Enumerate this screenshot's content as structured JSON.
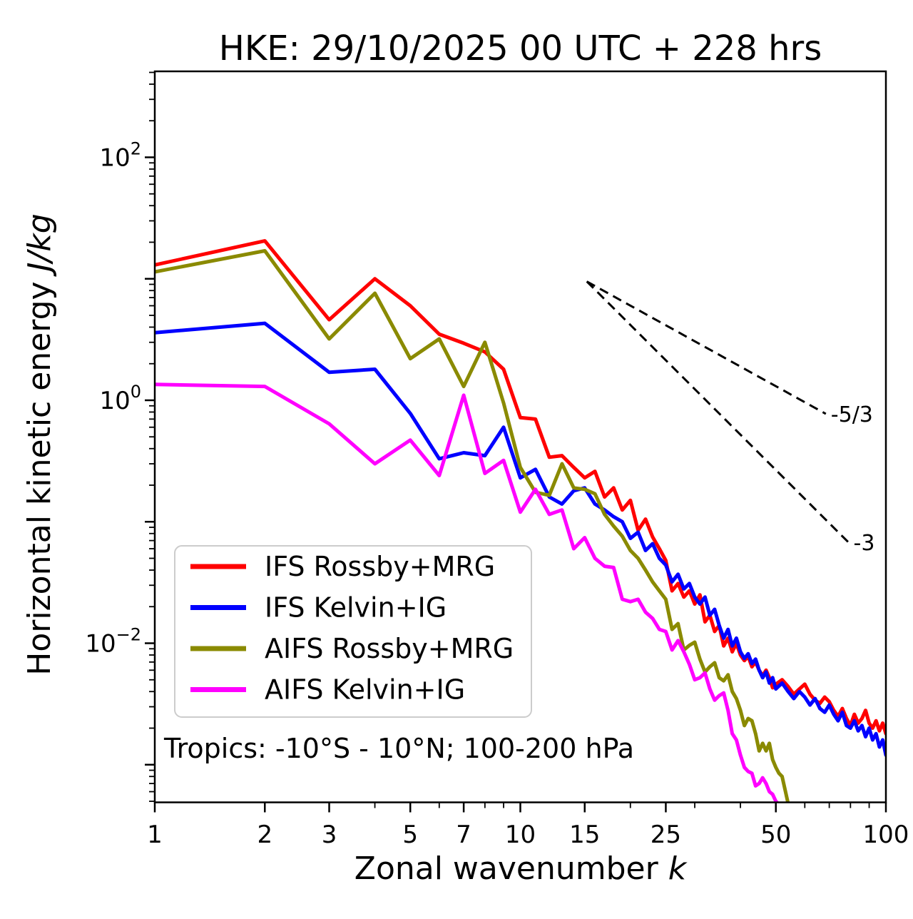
{
  "chart_data": {
    "type": "line",
    "title": "HKE: 29/10/2025 00 UTC + 228 hrs",
    "xlabel_text": "Zonal wavenumber ",
    "xlabel_var": "k",
    "ylabel_text": "Horizontal kinetic energy ",
    "ylabel_var": "J/kg",
    "annotation": "Tropics: -10°S - 10°N; 100-200 hPa",
    "xscale": "log",
    "yscale": "log",
    "grid": false,
    "legend_position": "lower left",
    "xlim": [
      1,
      100
    ],
    "ylim": [
      0.00049,
      510
    ],
    "x_ticks": [
      {
        "v": 1,
        "label": "1"
      },
      {
        "v": 2,
        "label": "2"
      },
      {
        "v": 3,
        "label": "3"
      },
      {
        "v": 5,
        "label": "5"
      },
      {
        "v": 7,
        "label": "7"
      },
      {
        "v": 10,
        "label": "10"
      },
      {
        "v": 15,
        "label": "15"
      },
      {
        "v": 25,
        "label": "25"
      },
      {
        "v": 50,
        "label": "50"
      },
      {
        "v": 100,
        "label": "100"
      }
    ],
    "x_minor_ticks": [
      4,
      6,
      8,
      9,
      20,
      30,
      40,
      60,
      70,
      80,
      90
    ],
    "y_major_ticks": [
      100,
      10,
      1,
      0.1,
      0.01,
      0.001
    ],
    "y_ticks": [
      {
        "v": 100,
        "base": "10",
        "exp": "2"
      },
      {
        "v": 1,
        "base": "10",
        "exp": "0"
      },
      {
        "v": 0.01,
        "base": "10",
        "exp": "−2"
      }
    ],
    "ref_lines": [
      {
        "label": "-5/3",
        "slope": -1.6667,
        "k0": 15.2,
        "v0": 9.5,
        "k1": 68.5
      },
      {
        "label": "-3",
        "slope": -3,
        "k0": 15.2,
        "v0": 9.5,
        "k1": 79
      }
    ],
    "series": [
      {
        "name": "IFS Rossby+MRG",
        "color": "#ff0000",
        "points": [
          [
            1,
            13.0
          ],
          [
            2,
            20.5
          ],
          [
            3,
            4.6
          ],
          [
            4,
            10.0
          ],
          [
            5,
            6.0
          ],
          [
            6,
            3.5
          ],
          [
            7,
            2.95
          ],
          [
            8,
            2.5
          ],
          [
            9,
            1.8
          ],
          [
            10,
            0.72
          ],
          [
            11,
            0.7
          ],
          [
            12,
            0.34
          ],
          [
            13,
            0.35
          ],
          [
            14,
            0.28
          ],
          [
            15,
            0.23
          ],
          [
            16,
            0.26
          ],
          [
            17,
            0.16
          ],
          [
            18,
            0.19
          ],
          [
            19,
            0.125
          ],
          [
            20,
            0.15
          ],
          [
            21,
            0.085
          ],
          [
            22,
            0.105
          ],
          [
            23,
            0.075
          ],
          [
            24,
            0.06
          ],
          [
            25,
            0.048
          ],
          [
            26,
            0.027
          ],
          [
            27,
            0.031
          ],
          [
            28,
            0.024
          ],
          [
            29,
            0.027
          ],
          [
            30,
            0.021
          ],
          [
            31,
            0.025
          ],
          [
            32,
            0.015
          ],
          [
            33,
            0.017
          ],
          [
            34,
            0.0125
          ],
          [
            35,
            0.014
          ],
          [
            36,
            0.0095
          ],
          [
            37,
            0.011
          ],
          [
            38,
            0.0085
          ],
          [
            39,
            0.01
          ],
          [
            40,
            0.008
          ],
          [
            41,
            0.0072
          ],
          [
            42,
            0.0078
          ],
          [
            43,
            0.0064
          ],
          [
            44,
            0.007
          ],
          [
            45,
            0.006
          ],
          [
            46,
            0.0054
          ],
          [
            47,
            0.006
          ],
          [
            48,
            0.0052
          ],
          [
            49,
            0.0043
          ],
          [
            50,
            0.0046
          ],
          [
            52,
            0.005
          ],
          [
            54,
            0.0044
          ],
          [
            56,
            0.0038
          ],
          [
            58,
            0.0042
          ],
          [
            60,
            0.0046
          ],
          [
            62,
            0.0038
          ],
          [
            64,
            0.0034
          ],
          [
            66,
            0.0032
          ],
          [
            68,
            0.0036
          ],
          [
            70,
            0.0033
          ],
          [
            72,
            0.0028
          ],
          [
            74,
            0.0025
          ],
          [
            76,
            0.0029
          ],
          [
            78,
            0.0024
          ],
          [
            80,
            0.0021
          ],
          [
            82,
            0.0026
          ],
          [
            84,
            0.0022
          ],
          [
            86,
            0.0024
          ],
          [
            88,
            0.0028
          ],
          [
            90,
            0.0022
          ],
          [
            92,
            0.002
          ],
          [
            94,
            0.0023
          ],
          [
            96,
            0.0019
          ],
          [
            98,
            0.0022
          ],
          [
            100,
            0.0018
          ]
        ]
      },
      {
        "name": "IFS Kelvin+IG",
        "color": "#0000ff",
        "points": [
          [
            1,
            3.6
          ],
          [
            2,
            4.3
          ],
          [
            3,
            1.7
          ],
          [
            4,
            1.8
          ],
          [
            5,
            0.78
          ],
          [
            6,
            0.33
          ],
          [
            7,
            0.37
          ],
          [
            8,
            0.35
          ],
          [
            9,
            0.6
          ],
          [
            10,
            0.23
          ],
          [
            11,
            0.27
          ],
          [
            12,
            0.16
          ],
          [
            13,
            0.14
          ],
          [
            14,
            0.18
          ],
          [
            15,
            0.19
          ],
          [
            16,
            0.14
          ],
          [
            17,
            0.125
          ],
          [
            18,
            0.11
          ],
          [
            19,
            0.1
          ],
          [
            20,
            0.073
          ],
          [
            21,
            0.082
          ],
          [
            22,
            0.058
          ],
          [
            23,
            0.066
          ],
          [
            24,
            0.05
          ],
          [
            25,
            0.044
          ],
          [
            26,
            0.032
          ],
          [
            27,
            0.037
          ],
          [
            28,
            0.028
          ],
          [
            29,
            0.031
          ],
          [
            30,
            0.024
          ],
          [
            31,
            0.021
          ],
          [
            32,
            0.024
          ],
          [
            33,
            0.017
          ],
          [
            34,
            0.019
          ],
          [
            35,
            0.014
          ],
          [
            36,
            0.011
          ],
          [
            37,
            0.013
          ],
          [
            38,
            0.0095
          ],
          [
            39,
            0.011
          ],
          [
            40,
            0.0085
          ],
          [
            41,
            0.0075
          ],
          [
            42,
            0.0082
          ],
          [
            43,
            0.0068
          ],
          [
            44,
            0.0074
          ],
          [
            45,
            0.006
          ],
          [
            46,
            0.0052
          ],
          [
            47,
            0.0058
          ],
          [
            48,
            0.0047
          ],
          [
            49,
            0.0052
          ],
          [
            50,
            0.0042
          ],
          [
            52,
            0.0047
          ],
          [
            54,
            0.004
          ],
          [
            56,
            0.0035
          ],
          [
            58,
            0.004
          ],
          [
            60,
            0.0036
          ],
          [
            62,
            0.0031
          ],
          [
            64,
            0.0035
          ],
          [
            66,
            0.0029
          ],
          [
            68,
            0.0027
          ],
          [
            70,
            0.0031
          ],
          [
            72,
            0.0026
          ],
          [
            74,
            0.0023
          ],
          [
            76,
            0.0027
          ],
          [
            78,
            0.0021
          ],
          [
            80,
            0.002
          ],
          [
            82,
            0.0023
          ],
          [
            84,
            0.0019
          ],
          [
            86,
            0.0021
          ],
          [
            88,
            0.0017
          ],
          [
            90,
            0.002
          ],
          [
            92,
            0.0016
          ],
          [
            94,
            0.0018
          ],
          [
            96,
            0.0014
          ],
          [
            98,
            0.0016
          ],
          [
            100,
            0.0012
          ]
        ]
      },
      {
        "name": "AIFS Rossby+MRG",
        "color": "#8a8a00",
        "points": [
          [
            1,
            11.4
          ],
          [
            2,
            17.0
          ],
          [
            3,
            3.2
          ],
          [
            4,
            7.6
          ],
          [
            5,
            2.2
          ],
          [
            6,
            3.2
          ],
          [
            7,
            1.3
          ],
          [
            8,
            3.0
          ],
          [
            9,
            0.95
          ],
          [
            10,
            0.28
          ],
          [
            11,
            0.175
          ],
          [
            12,
            0.165
          ],
          [
            13,
            0.3
          ],
          [
            14,
            0.19
          ],
          [
            15,
            0.185
          ],
          [
            16,
            0.17
          ],
          [
            17,
            0.115
          ],
          [
            18,
            0.092
          ],
          [
            19,
            0.076
          ],
          [
            20,
            0.058
          ],
          [
            21,
            0.05
          ],
          [
            22,
            0.04
          ],
          [
            23,
            0.032
          ],
          [
            24,
            0.027
          ],
          [
            25,
            0.023
          ],
          [
            26,
            0.013
          ],
          [
            27,
            0.0145
          ],
          [
            28,
            0.0088
          ],
          [
            29,
            0.0096
          ],
          [
            30,
            0.0102
          ],
          [
            31,
            0.0074
          ],
          [
            32,
            0.0058
          ],
          [
            33,
            0.0064
          ],
          [
            34,
            0.0069
          ],
          [
            35,
            0.0052
          ],
          [
            36,
            0.0049
          ],
          [
            37,
            0.0055
          ],
          [
            38,
            0.004
          ],
          [
            39,
            0.0035
          ],
          [
            40,
            0.0028
          ],
          [
            41,
            0.0021
          ],
          [
            42,
            0.0024
          ],
          [
            43,
            0.0023
          ],
          [
            44,
            0.0018
          ],
          [
            45,
            0.0013
          ],
          [
            46,
            0.0015
          ],
          [
            47,
            0.0013
          ],
          [
            48,
            0.0015
          ],
          [
            49,
            0.0011
          ],
          [
            50,
            0.00095
          ],
          [
            51,
            0.00085
          ],
          [
            52,
            0.0008
          ],
          [
            53,
            0.00062
          ],
          [
            54,
            0.00048
          ],
          [
            55,
            0.0004
          ]
        ]
      },
      {
        "name": "AIFS Kelvin+IG",
        "color": "#ff00ff",
        "points": [
          [
            1,
            1.35
          ],
          [
            2,
            1.3
          ],
          [
            3,
            0.64
          ],
          [
            4,
            0.3
          ],
          [
            5,
            0.47
          ],
          [
            6,
            0.24
          ],
          [
            7,
            1.1
          ],
          [
            8,
            0.25
          ],
          [
            9,
            0.32
          ],
          [
            10,
            0.12
          ],
          [
            11,
            0.185
          ],
          [
            12,
            0.115
          ],
          [
            13,
            0.125
          ],
          [
            14,
            0.06
          ],
          [
            15,
            0.074
          ],
          [
            16,
            0.05
          ],
          [
            17,
            0.043
          ],
          [
            18,
            0.042
          ],
          [
            19,
            0.023
          ],
          [
            20,
            0.022
          ],
          [
            21,
            0.023
          ],
          [
            22,
            0.018
          ],
          [
            23,
            0.016
          ],
          [
            24,
            0.013
          ],
          [
            25,
            0.0125
          ],
          [
            26,
            0.0088
          ],
          [
            27,
            0.0105
          ],
          [
            28,
            0.0085
          ],
          [
            29,
            0.0067
          ],
          [
            30,
            0.005
          ],
          [
            31,
            0.0052
          ],
          [
            32,
            0.0057
          ],
          [
            33,
            0.0042
          ],
          [
            34,
            0.0034
          ],
          [
            35,
            0.0037
          ],
          [
            36,
            0.0039
          ],
          [
            37,
            0.0028
          ],
          [
            38,
            0.0018
          ],
          [
            39,
            0.0016
          ],
          [
            40,
            0.0012
          ],
          [
            41,
            0.00095
          ],
          [
            42,
            0.00088
          ],
          [
            43,
            0.00085
          ],
          [
            44,
            0.00067
          ],
          [
            45,
            0.0007
          ],
          [
            46,
            0.00078
          ],
          [
            47,
            0.0007
          ],
          [
            48,
            0.0006
          ],
          [
            49,
            0.00057
          ],
          [
            50,
            0.0005
          ],
          [
            51,
            0.00047
          ],
          [
            52,
            0.00042
          ],
          [
            53,
            0.00038
          ]
        ]
      }
    ]
  }
}
